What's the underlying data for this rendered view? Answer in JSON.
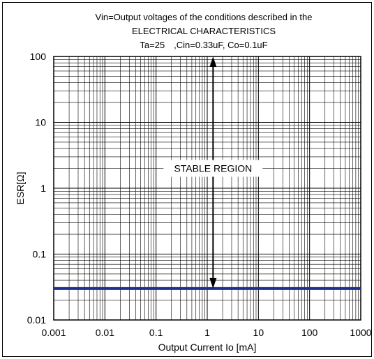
{
  "chart_data": {
    "type": "line",
    "title": [
      "Vin=Output voltages of the conditions described in the",
      "ELECTRICAL CHARACTERISTICS",
      "Ta=25 ,Cin=0.33uF, Co=0.1uF"
    ],
    "xlabel": "Output Current Io [mA]",
    "ylabel": "ESR[Ω]",
    "x_scale": "log",
    "y_scale": "log",
    "xlim": [
      0.001,
      1000
    ],
    "ylim": [
      0.01,
      100
    ],
    "x_ticks": [
      "0.001",
      "0.01",
      "0.1",
      "1",
      "10",
      "100",
      "1000"
    ],
    "y_ticks": [
      "0.01",
      "0.1",
      "1",
      "10",
      "100"
    ],
    "grid": true,
    "series": [
      {
        "x": [
          0.001,
          1000
        ],
        "y": [
          0.03,
          0.03
        ],
        "color": "#1f2f8f"
      }
    ],
    "annotations": [
      {
        "type": "double-arrow",
        "x": 1.3,
        "y_range": [
          0.03,
          100
        ]
      },
      {
        "type": "label",
        "text": "STABLE REGION",
        "x": 1.3,
        "y": 2.0
      }
    ]
  }
}
